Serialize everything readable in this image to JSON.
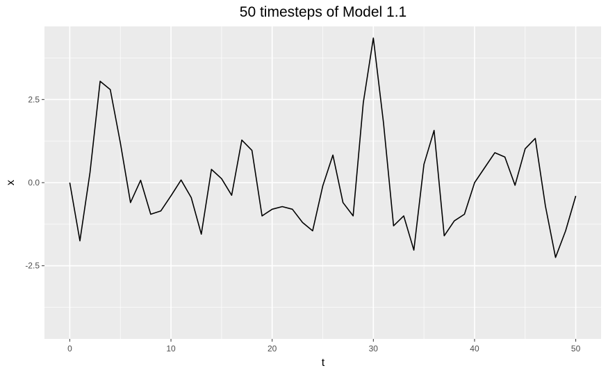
{
  "chart_data": {
    "type": "line",
    "title": "50 timesteps of Model 1.1",
    "xlabel": "t",
    "ylabel": "x",
    "xlim": [
      -2.5,
      52.5
    ],
    "ylim": [
      -4.7,
      4.7
    ],
    "x_major_ticks": [
      0,
      10,
      20,
      30,
      40,
      50
    ],
    "x_tick_labels": [
      "0",
      "10",
      "20",
      "30",
      "40",
      "50"
    ],
    "x_minor_ticks": [
      5,
      15,
      25,
      35,
      45
    ],
    "y_major_ticks": [
      -2.5,
      0,
      2.5
    ],
    "y_tick_labels": [
      "-2.5",
      "0.0",
      "2.5"
    ],
    "y_minor_ticks": [
      -3.75,
      -1.25,
      1.25,
      3.75
    ],
    "grid": true,
    "background": "#ebebeb",
    "series": [
      {
        "color": "#000000",
        "x": [
          0,
          1,
          2,
          3,
          4,
          5,
          6,
          7,
          8,
          9,
          10,
          11,
          12,
          13,
          14,
          15,
          16,
          17,
          18,
          19,
          20,
          21,
          22,
          23,
          24,
          25,
          26,
          27,
          28,
          29,
          30,
          31,
          32,
          33,
          34,
          35,
          36,
          37,
          38,
          39,
          40,
          41,
          42,
          43,
          44,
          45,
          46,
          47,
          48,
          49,
          50
        ],
        "values": [
          0.0,
          -1.75,
          0.3,
          3.05,
          2.8,
          1.2,
          -0.6,
          0.07,
          -0.95,
          -0.85,
          -0.4,
          0.08,
          -0.45,
          -1.55,
          0.4,
          0.12,
          -0.38,
          1.28,
          0.97,
          -1.0,
          -0.8,
          -0.72,
          -0.8,
          -1.2,
          -1.45,
          -0.1,
          0.83,
          -0.6,
          -1.0,
          2.4,
          4.35,
          1.8,
          -1.3,
          -1.0,
          -2.03,
          0.55,
          1.57,
          -1.6,
          -1.15,
          -0.95,
          0.0,
          0.45,
          0.9,
          0.77,
          -0.08,
          1.02,
          1.33,
          -0.7,
          -2.25,
          -1.45,
          -0.4
        ]
      }
    ]
  }
}
